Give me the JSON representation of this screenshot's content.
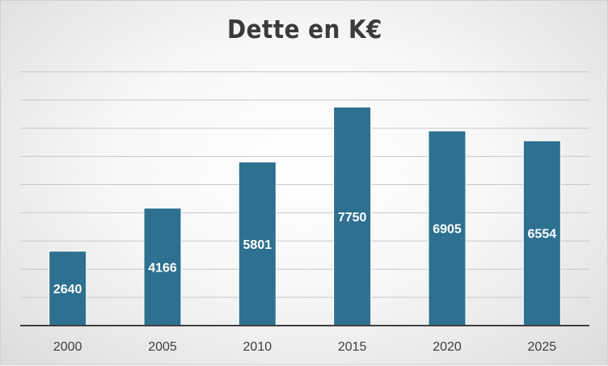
{
  "chart_data": {
    "type": "bar",
    "title": "Dette en K€",
    "categories": [
      "2000",
      "2005",
      "2010",
      "2015",
      "2020",
      "2025"
    ],
    "values": [
      2640,
      4166,
      5801,
      7750,
      6905,
      6554
    ],
    "xlabel": "",
    "ylabel": "",
    "ylim": [
      0,
      9000
    ],
    "grid": true,
    "legend": "none",
    "colors": {
      "bar": "#2E7090",
      "bar_edge": "#ffffff",
      "grid": "#c8c8c8",
      "axis": "#404040"
    }
  }
}
